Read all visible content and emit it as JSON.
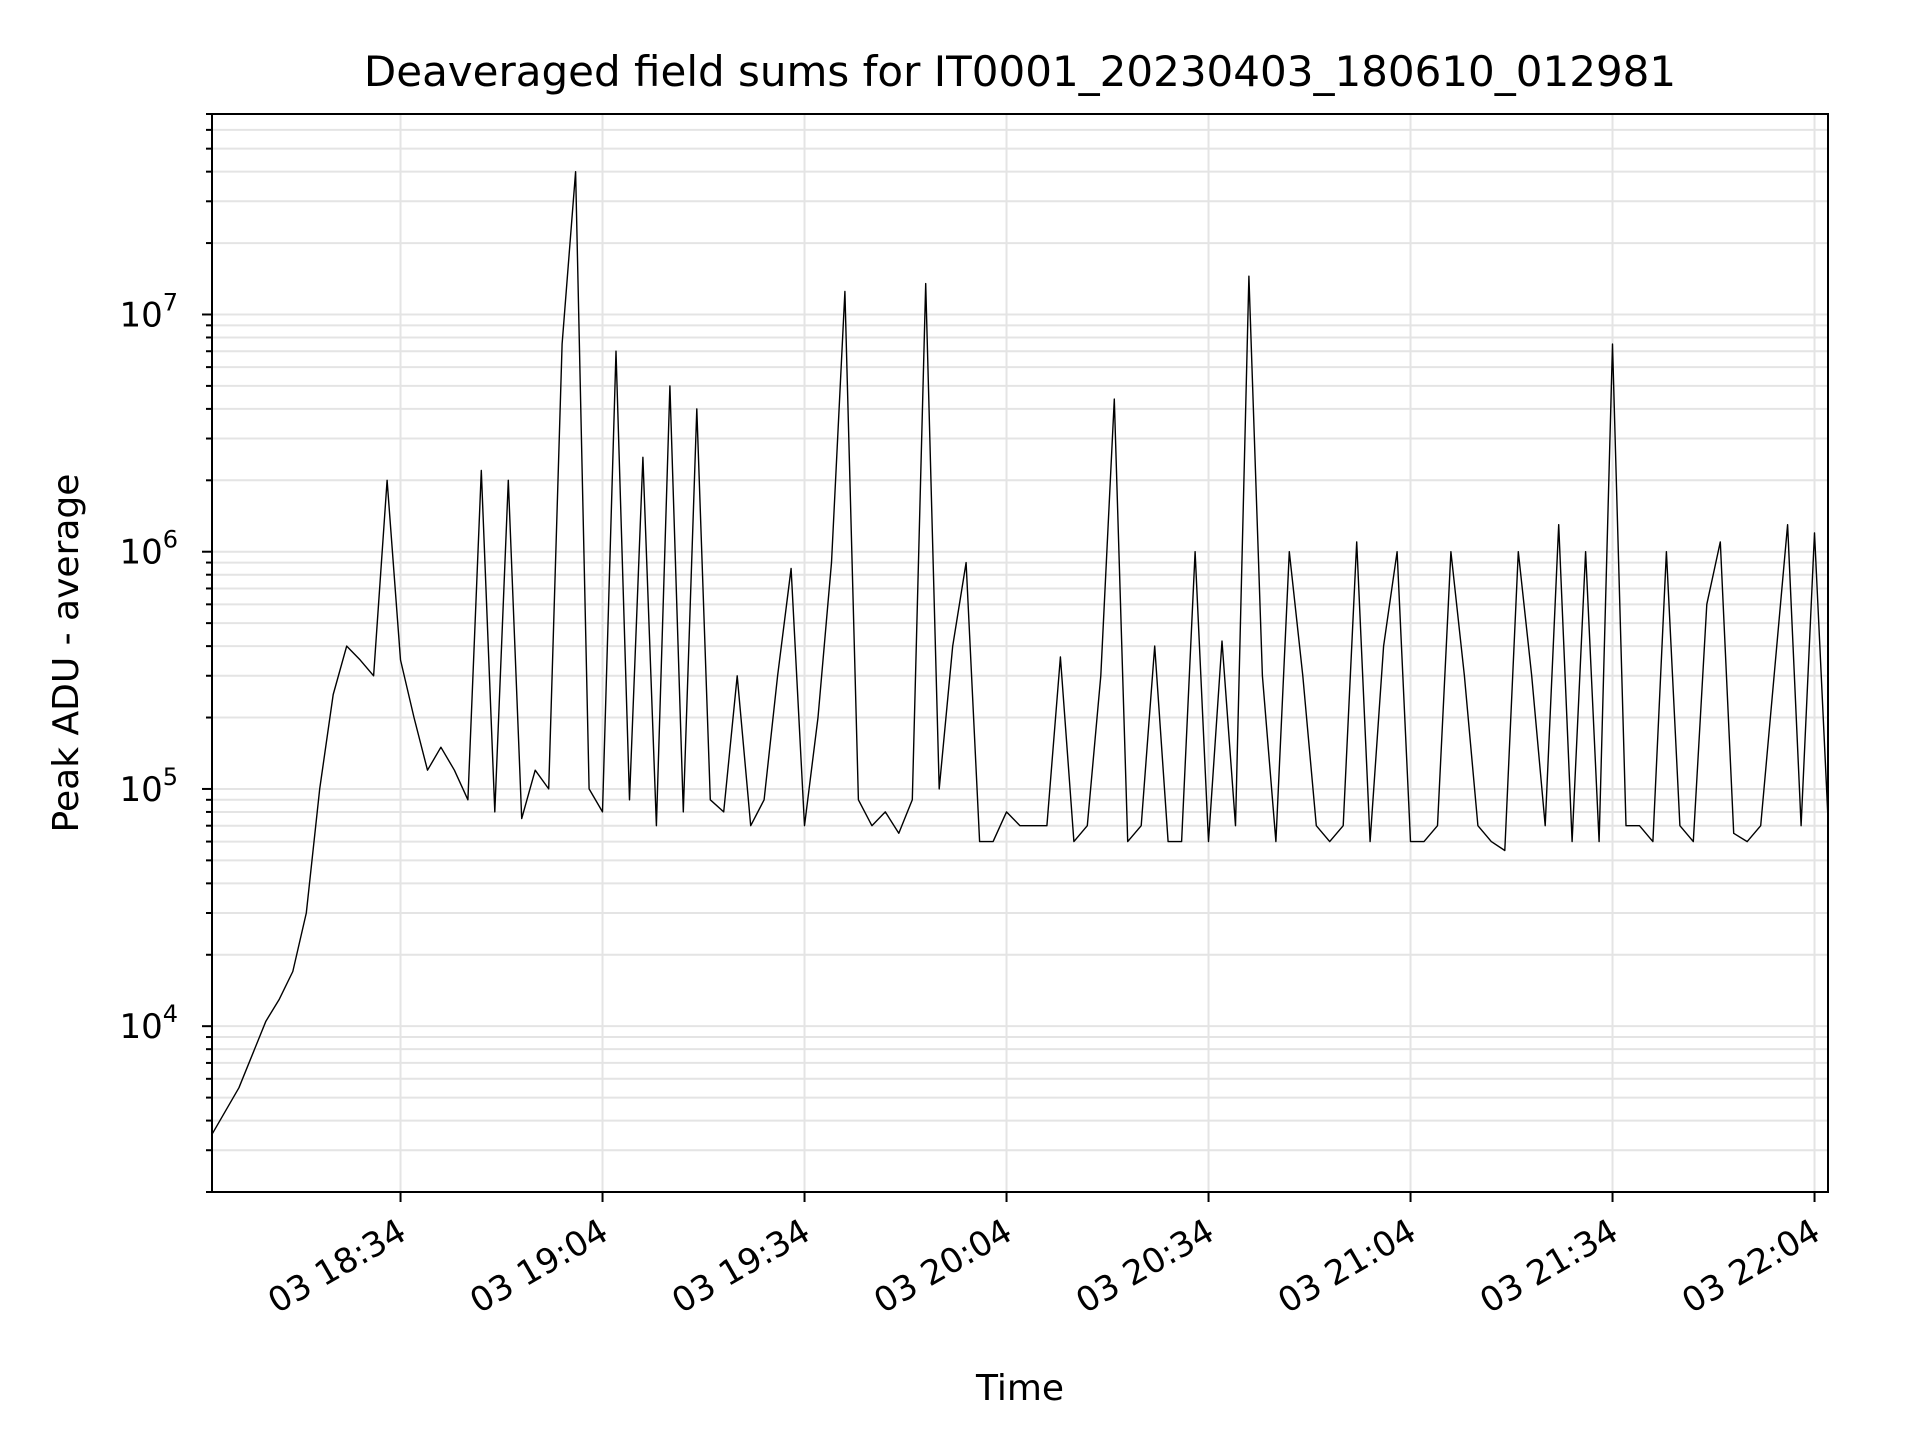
{
  "chart_data": {
    "type": "line",
    "title": "Deaveraged field sums for IT0001_20230403_180610_012981",
    "xlabel": "Time",
    "ylabel": "Peak ADU - average",
    "y_scale": "log",
    "grid": "on (major and minor)",
    "x_range": [
      "03 18:06",
      "03 22:06"
    ],
    "ylim": [
      2000,
      70000000
    ],
    "x_ticks": [
      "03 18:34",
      "03 19:04",
      "03 19:34",
      "03 20:04",
      "03 20:34",
      "03 21:04",
      "03 21:34",
      "03 22:04"
    ],
    "y_ticks": [
      {
        "base": "10",
        "exp": "4",
        "value": 10000
      },
      {
        "base": "10",
        "exp": "5",
        "value": 100000
      },
      {
        "base": "10",
        "exp": "6",
        "value": 1000000
      },
      {
        "base": "10",
        "exp": "7",
        "value": 10000000
      }
    ],
    "series": [
      {
        "color": "#000000",
        "x": [
          "03 18:06",
          "03 18:10",
          "03 18:14",
          "03 18:16",
          "03 18:18",
          "03 18:20",
          "03 18:22",
          "03 18:24",
          "03 18:26",
          "03 18:28",
          "03 18:30",
          "03 18:32",
          "03 18:34",
          "03 18:36",
          "03 18:38",
          "03 18:40",
          "03 18:42",
          "03 18:44",
          "03 18:46",
          "03 18:48",
          "03 18:50",
          "03 18:52",
          "03 18:54",
          "03 18:56",
          "03 18:58",
          "03 19:00",
          "03 19:02",
          "03 19:04",
          "03 19:06",
          "03 19:08",
          "03 19:10",
          "03 19:12",
          "03 19:14",
          "03 19:16",
          "03 19:18",
          "03 19:20",
          "03 19:22",
          "03 19:24",
          "03 19:26",
          "03 19:28",
          "03 19:30",
          "03 19:32",
          "03 19:34",
          "03 19:36",
          "03 19:38",
          "03 19:40",
          "03 19:42",
          "03 19:44",
          "03 19:46",
          "03 19:48",
          "03 19:50",
          "03 19:52",
          "03 19:54",
          "03 19:56",
          "03 19:58",
          "03 20:00",
          "03 20:02",
          "03 20:04",
          "03 20:06",
          "03 20:08",
          "03 20:10",
          "03 20:12",
          "03 20:14",
          "03 20:16",
          "03 20:18",
          "03 20:20",
          "03 20:22",
          "03 20:24",
          "03 20:26",
          "03 20:28",
          "03 20:30",
          "03 20:32",
          "03 20:34",
          "03 20:36",
          "03 20:38",
          "03 20:40",
          "03 20:42",
          "03 20:44",
          "03 20:46",
          "03 20:48",
          "03 20:50",
          "03 20:52",
          "03 20:54",
          "03 20:56",
          "03 20:58",
          "03 21:00",
          "03 21:02",
          "03 21:04",
          "03 21:06",
          "03 21:08",
          "03 21:10",
          "03 21:12",
          "03 21:14",
          "03 21:16",
          "03 21:18",
          "03 21:20",
          "03 21:22",
          "03 21:24",
          "03 21:26",
          "03 21:28",
          "03 21:30",
          "03 21:32",
          "03 21:34",
          "03 21:36",
          "03 21:38",
          "03 21:40",
          "03 21:42",
          "03 21:44",
          "03 21:46",
          "03 21:48",
          "03 21:50",
          "03 21:52",
          "03 21:54",
          "03 21:56",
          "03 21:58",
          "03 22:00",
          "03 22:02",
          "03 22:04",
          "03 22:06"
        ],
        "y": [
          3500,
          5500,
          10500,
          13000,
          17000,
          30000,
          100000,
          250000,
          400000,
          350000,
          300000,
          2000000,
          350000,
          200000,
          120000,
          150000,
          120000,
          90000,
          2200000,
          80000,
          2000000,
          75000,
          120000,
          100000,
          7500000,
          40000000,
          100000,
          80000,
          7000000,
          90000,
          2500000,
          70000,
          5000000,
          80000,
          4000000,
          90000,
          80000,
          300000,
          70000,
          90000,
          300000,
          850000,
          70000,
          200000,
          900000,
          12500000,
          90000,
          70000,
          80000,
          65000,
          90000,
          13500000,
          100000,
          400000,
          900000,
          60000,
          60000,
          80000,
          70000,
          70000,
          70000,
          360000,
          60000,
          70000,
          300000,
          4400000,
          60000,
          70000,
          400000,
          60000,
          60000,
          1000000,
          60000,
          420000,
          70000,
          14500000,
          300000,
          60000,
          1000000,
          300000,
          70000,
          60000,
          70000,
          1100000,
          60000,
          400000,
          1000000,
          60000,
          60000,
          70000,
          1000000,
          300000,
          70000,
          60000,
          55000,
          1000000,
          300000,
          70000,
          1300000,
          60000,
          1000000,
          60000,
          7500000,
          70000,
          70000,
          60000,
          1000000,
          70000,
          60000,
          600000,
          1100000,
          65000,
          60000,
          70000,
          300000,
          1300000,
          70000,
          1200000,
          75000
        ]
      }
    ]
  }
}
